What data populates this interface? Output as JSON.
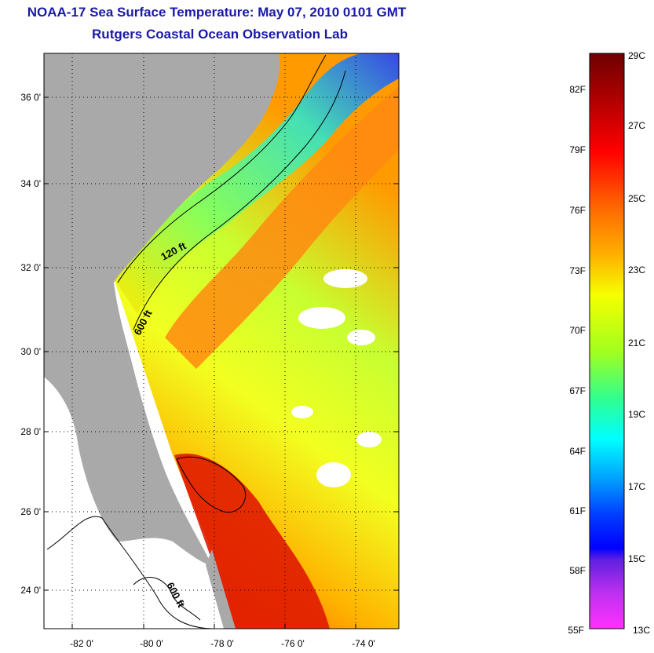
{
  "header": {
    "title": "NOAA-17 Sea Surface Temperature:  May 07, 2010 0101 GMT",
    "subtitle": "Rutgers Coastal Ocean Observation Lab"
  },
  "map": {
    "lat_labels": [
      "36 0'",
      "34 0'",
      "32 0'",
      "30 0'",
      "28 0'",
      "26 0'",
      "24 0'"
    ],
    "lon_labels": [
      "-82 0'",
      "-80 0'",
      "-78 0'",
      "-76 0'",
      "-74 0'"
    ],
    "contour_labels": [
      "120 ft",
      "600 ft",
      "600 ft"
    ],
    "colors": {
      "land": "#a9a9a9",
      "no_data": "#ffffff",
      "contour": "#000000"
    }
  },
  "colorbar": {
    "celsius": [
      "29C",
      "27C",
      "25C",
      "23C",
      "21C",
      "19C",
      "17C",
      "15C",
      "13C"
    ],
    "fahrenheit": [
      "82F",
      "79F",
      "76F",
      "73F",
      "70F",
      "67F",
      "64F",
      "61F",
      "58F",
      "55F"
    ],
    "colors_top_to_bottom": [
      "#6e0000",
      "#d40000",
      "#ff2a00",
      "#ff7a00",
      "#ffd000",
      "#e8ff00",
      "#7dff3a",
      "#20ffb4",
      "#00ffff",
      "#0090ff",
      "#0020ff",
      "#7a20e0",
      "#ff30ff"
    ]
  }
}
